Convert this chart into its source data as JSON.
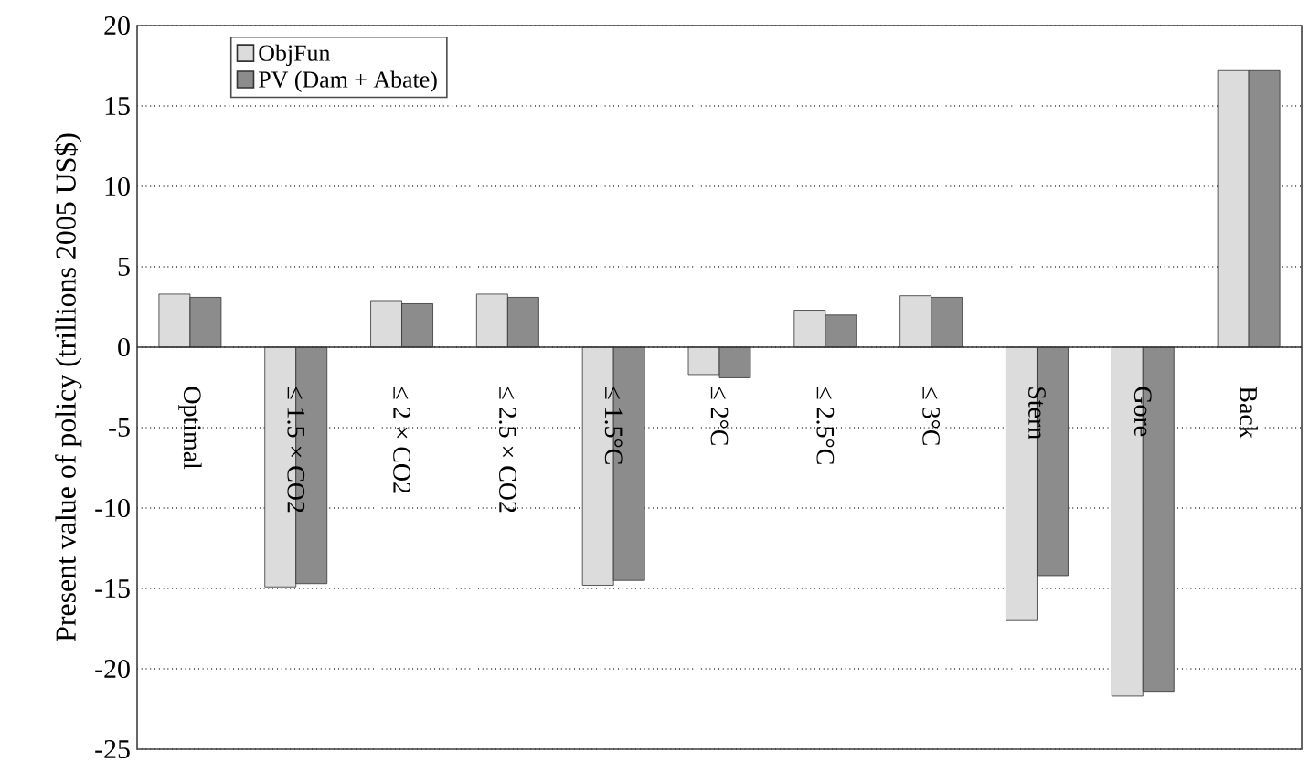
{
  "chart_data": {
    "type": "bar",
    "ylabel": "Present value of policy (trillions 2005 US$)",
    "categories": [
      "Optimal",
      "≤ 1.5 × CO2",
      "≤ 2 × CO2",
      "≤ 2.5 × CO2",
      "≤ 1.5°C",
      "≤ 2°C",
      "≤ 2.5°C",
      "≤ 3°C",
      "Stern",
      "Gore",
      "Back"
    ],
    "series": [
      {
        "name": "ObjFun",
        "color": "#dcdcdc",
        "values": [
          3.3,
          -14.9,
          2.9,
          3.3,
          -14.8,
          -1.7,
          2.3,
          3.2,
          -17.0,
          -21.7,
          17.2
        ]
      },
      {
        "name": "PV (Dam + Abate)",
        "color": "#8c8c8c",
        "values": [
          3.1,
          -14.7,
          2.7,
          3.1,
          -14.5,
          -1.9,
          2.0,
          3.1,
          -14.2,
          -21.4,
          17.2
        ]
      }
    ],
    "ylim": [
      -25,
      20
    ],
    "yticks": [
      -25,
      -20,
      -15,
      -10,
      -5,
      0,
      5,
      10,
      15,
      20
    ],
    "grid": "y",
    "legend": "top left"
  }
}
